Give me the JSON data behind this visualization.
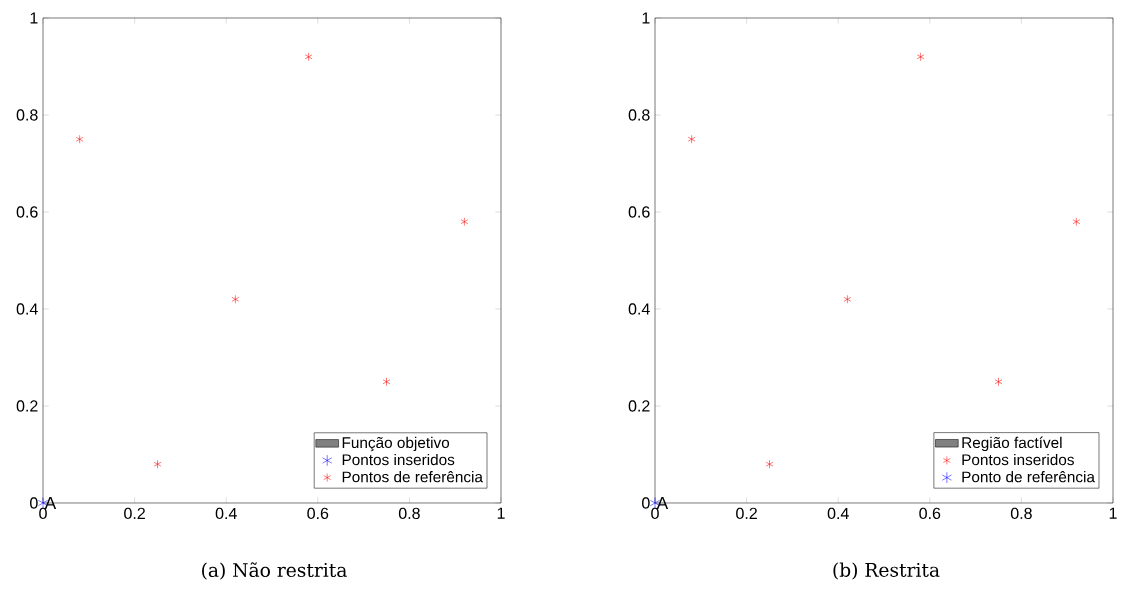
{
  "chart_data": [
    {
      "type": "scatter",
      "xlim": [
        0,
        1
      ],
      "ylim": [
        0,
        1
      ],
      "xticks": [
        0,
        0.2,
        0.4,
        0.6,
        0.8,
        1
      ],
      "yticks": [
        0,
        0.2,
        0.4,
        0.6,
        0.8,
        1
      ],
      "legend": "bottom right",
      "marker": "cross",
      "series": [
        {
          "name": "Função objetivo",
          "type": "other",
          "color": "#808080"
        },
        {
          "name": "Pontos inseridos",
          "color": "#0000ff",
          "x": [
            0
          ],
          "values": [
            0
          ]
        },
        {
          "name": "Pontos de referência",
          "color": "#ff0000",
          "x": [
            0.08,
            0.58,
            0.92,
            0.42,
            0.75,
            0.25
          ],
          "values": [
            0.75,
            0.92,
            0.58,
            0.42,
            0.25,
            0.08
          ]
        }
      ],
      "annotations": [
        {
          "text": "A",
          "x": 0,
          "y": 0
        },
        "(a) Não restrita"
      ]
    },
    {
      "type": "scatter",
      "xlim": [
        0,
        1
      ],
      "ylim": [
        0,
        1
      ],
      "xticks": [
        0,
        0.2,
        0.4,
        0.6,
        0.8,
        1
      ],
      "yticks": [
        0,
        0.2,
        0.4,
        0.6,
        0.8,
        1
      ],
      "legend": "bottom right",
      "marker": "cross",
      "series": [
        {
          "name": "Região factível",
          "type": "other",
          "color": "#808080"
        },
        {
          "name": "Pontos inseridos",
          "color": "#ff0000",
          "x": [
            0.08,
            0.58,
            0.92,
            0.42,
            0.75,
            0.25
          ],
          "values": [
            0.75,
            0.92,
            0.58,
            0.42,
            0.25,
            0.08
          ]
        },
        {
          "name": "Ponto de referência",
          "color": "#0000ff",
          "x": [
            0
          ],
          "values": [
            0
          ]
        }
      ],
      "annotations": [
        {
          "text": "A",
          "x": 0,
          "y": 0
        },
        "(b) Restrita"
      ]
    }
  ]
}
